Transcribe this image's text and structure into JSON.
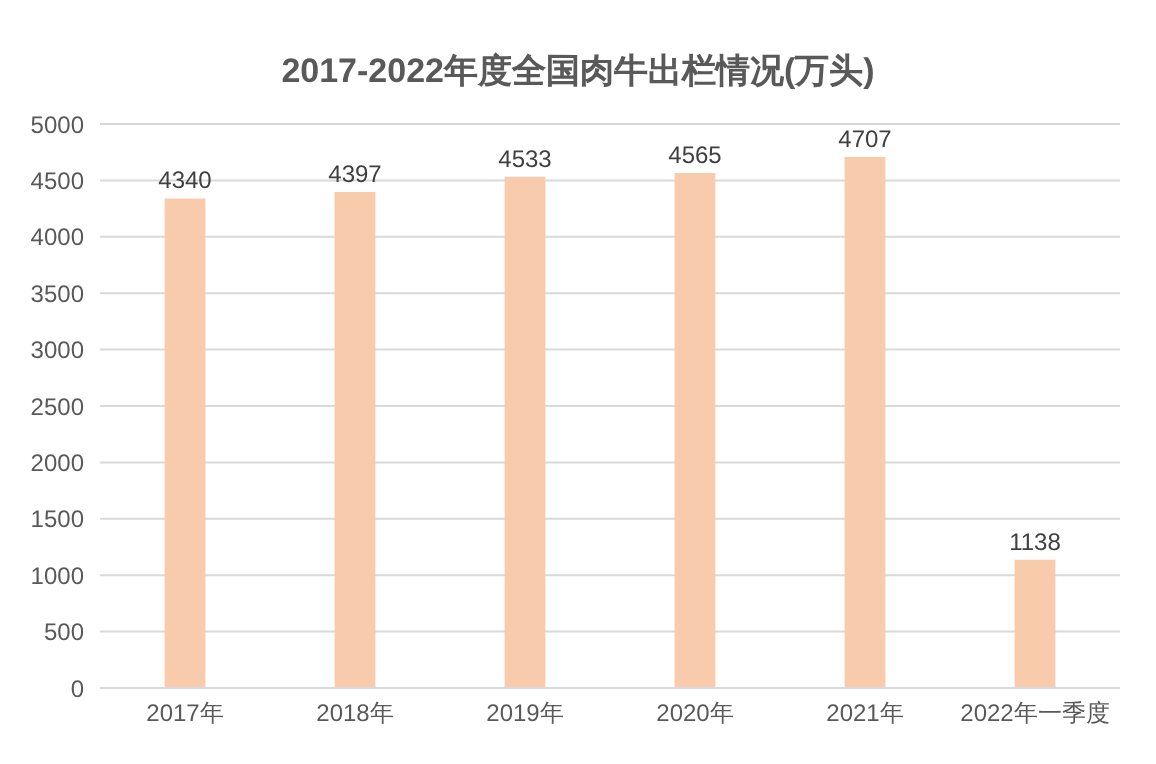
{
  "chart_data": {
    "type": "bar",
    "title": "2017-2022年度全国肉牛出栏情况(万头)",
    "categories": [
      "2017年",
      "2018年",
      "2019年",
      "2020年",
      "2021年",
      "2022年一季度"
    ],
    "values": [
      4340,
      4397,
      4533,
      4565,
      4707,
      1138
    ],
    "color": "#f8cbad",
    "ylim": [
      0,
      5000
    ],
    "yticks": [
      0,
      500,
      1000,
      1500,
      2000,
      2500,
      3000,
      3500,
      4000,
      4500,
      5000
    ],
    "grid": "y",
    "data_labels": true
  }
}
